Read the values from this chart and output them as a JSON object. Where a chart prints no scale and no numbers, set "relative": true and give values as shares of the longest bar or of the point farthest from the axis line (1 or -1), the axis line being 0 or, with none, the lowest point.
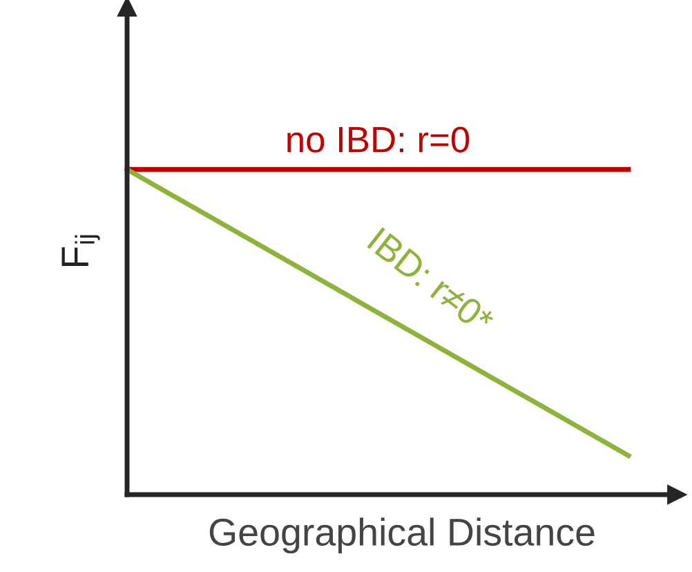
{
  "chart_data": {
    "type": "line",
    "relative": true,
    "xlabel": "Geographical Distance",
    "ylabel": "F$_{ij}$",
    "categories": [
      null,
      null
    ],
    "series": [
      {
        "name": "no IBD: r=0",
        "color": "#c00000",
        "values": [
          1,
          1
        ]
      },
      {
        "name": "IBD: r≠0*",
        "color": "#8db33a",
        "values": [
          1,
          0.12
        ]
      }
    ],
    "legend": false,
    "marker": "none",
    "line_style": "solid"
  }
}
